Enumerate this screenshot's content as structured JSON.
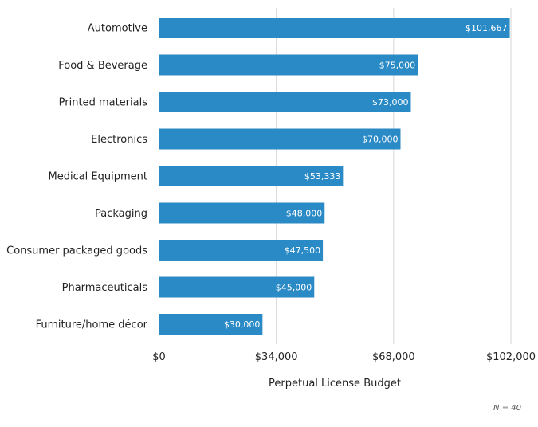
{
  "chart_data": {
    "type": "bar",
    "orientation": "horizontal",
    "categories": [
      "Automotive",
      "Food & Beverage",
      "Printed materials",
      "Electronics",
      "Medical Equipment",
      "Packaging",
      "Consumer packaged goods",
      "Pharmaceuticals",
      "Furniture/home décor"
    ],
    "values": [
      101667,
      75000,
      73000,
      70000,
      53333,
      48000,
      47500,
      45000,
      30000
    ],
    "value_labels": [
      "$101,667",
      "$75,000",
      "$73,000",
      "$70,000",
      "$53,333",
      "$48,000",
      "$47,500",
      "$45,000",
      "$30,000"
    ],
    "xlabel": "Perpetual License Budget",
    "ylabel": "",
    "xlim": [
      0,
      102000
    ],
    "xticks": [
      0,
      34000,
      68000,
      102000
    ],
    "xtick_labels": [
      "$0",
      "$34,000",
      "$68,000",
      "$102,000"
    ],
    "grid": true,
    "bar_color": "#2a8ac6",
    "note": "N = 40"
  }
}
